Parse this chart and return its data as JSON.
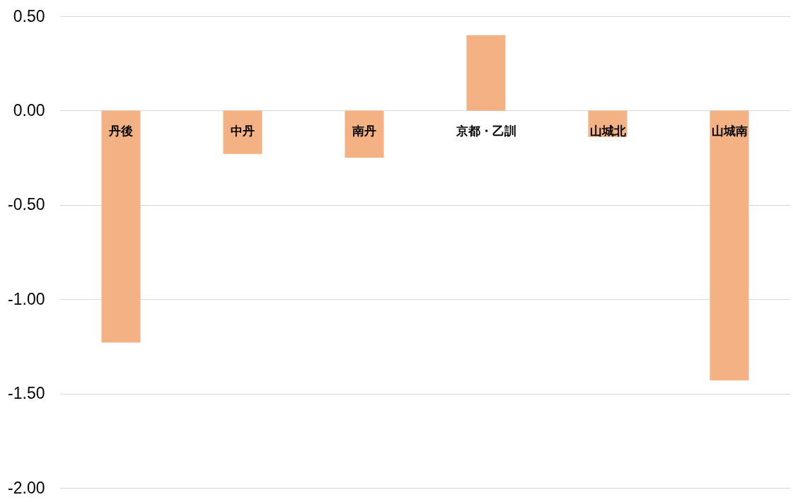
{
  "chart_data": {
    "type": "bar",
    "categories": [
      "丹後",
      "中丹",
      "南丹",
      "京都・乙訓",
      "山城北",
      "山城南"
    ],
    "values": [
      -1.23,
      -0.23,
      -0.25,
      0.4,
      -0.14,
      -1.43
    ],
    "color": "#f4b183",
    "ylim": [
      -2.0,
      0.5
    ],
    "yticks": [
      {
        "value": -2.0,
        "label": "-2.00"
      },
      {
        "value": -1.5,
        "label": "-1.50"
      },
      {
        "value": -1.0,
        "label": "-1.00"
      },
      {
        "value": -0.5,
        "label": "-0.50"
      },
      {
        "value": 0,
        "label": "0.00"
      },
      {
        "value": 0.5,
        "label": "0.50"
      }
    ],
    "grid": "y"
  }
}
